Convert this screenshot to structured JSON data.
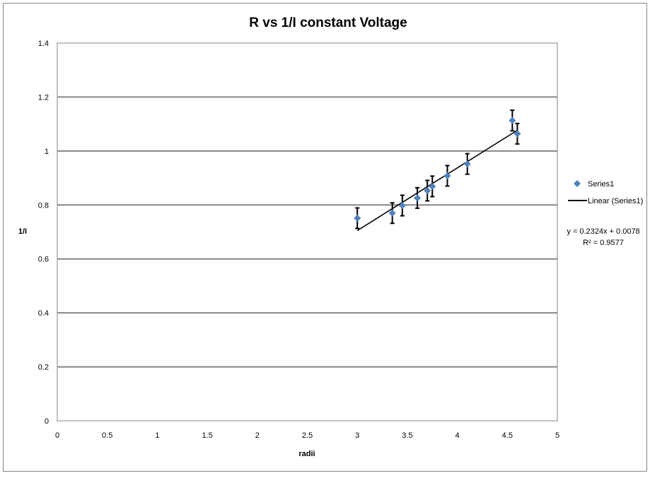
{
  "chart_data": {
    "type": "scatter",
    "title": "R vs 1/I constant Voltage",
    "xlabel": "radii",
    "ylabel": "1/I",
    "xlim": [
      0,
      5
    ],
    "ylim": [
      0,
      1.4
    ],
    "xticks": [
      0,
      0.5,
      1,
      1.5,
      2,
      2.5,
      3,
      3.5,
      4,
      4.5,
      5
    ],
    "yticks": [
      0,
      0.2,
      0.4,
      0.6,
      0.8,
      1,
      1.2,
      1.4
    ],
    "xtick_labels": [
      "0",
      "0.5",
      "1",
      "1.5",
      "2",
      "2.5",
      "3",
      "3.5",
      "4",
      "4.5",
      "5"
    ],
    "ytick_labels": [
      "0",
      "0.2",
      "0.4",
      "0.6",
      "0.8",
      "1",
      "1.2",
      "1.4"
    ],
    "grid": "horizontal major gridlines",
    "legend_position": "right",
    "series": [
      {
        "name": "Series1",
        "color": "#4F81BD",
        "marker": "diamond",
        "x": [
          3.0,
          3.35,
          3.45,
          3.6,
          3.7,
          3.75,
          3.9,
          4.1,
          4.55,
          4.6
        ],
        "y": [
          0.751,
          0.77,
          0.798,
          0.826,
          0.853,
          0.869,
          0.908,
          0.952,
          1.113,
          1.064
        ],
        "y_error": 0.038
      }
    ],
    "trendline": {
      "name": "Linear (Series1)",
      "type": "linear",
      "slope": 0.2324,
      "intercept": 0.0078,
      "x_range": [
        3.0,
        4.6
      ],
      "color": "#000000",
      "equation_label": "y = 0.2324x + 0.0078",
      "r2_label": "R² = 0.9577"
    }
  }
}
